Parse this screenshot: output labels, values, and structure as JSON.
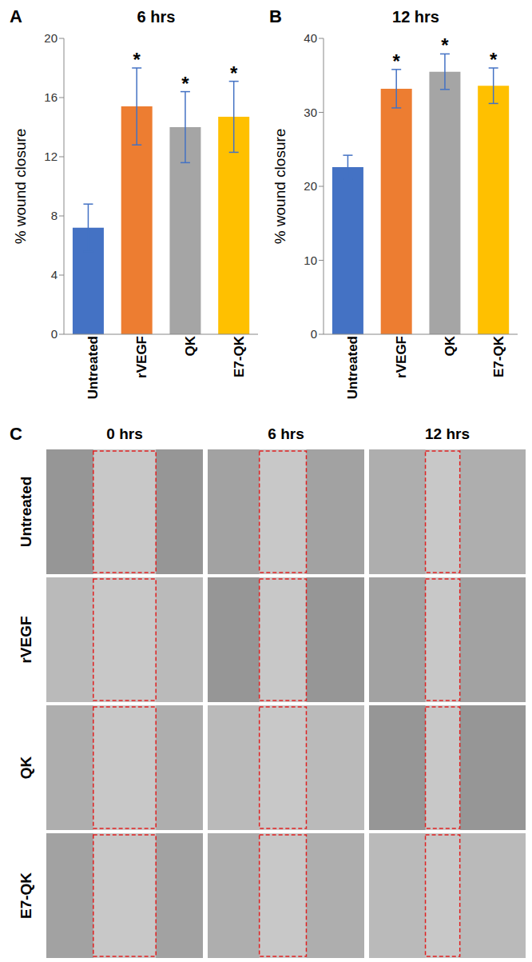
{
  "chart_data": [
    {
      "type": "bar",
      "panel": "A",
      "title": "6 hrs",
      "y_label": "% wound closure",
      "categories": [
        "Untreated",
        "rVEGF",
        "QK",
        "E7-QK"
      ],
      "values": [
        7.2,
        15.4,
        14.0,
        14.7
      ],
      "errors": [
        1.6,
        2.6,
        2.4,
        2.4
      ],
      "annotations": [
        null,
        "*",
        "*",
        "*"
      ],
      "colors": [
        "#4472c4",
        "#ed7d31",
        "#a5a5a5",
        "#ffc000"
      ],
      "ylim": [
        0,
        20
      ],
      "yticks": [
        0,
        4,
        8,
        12,
        16,
        20
      ],
      "grid": false
    },
    {
      "type": "bar",
      "panel": "B",
      "title": "12 hrs",
      "y_label": "% wound closure",
      "categories": [
        "Untreated",
        "rVEGF",
        "QK",
        "E7-QK"
      ],
      "values": [
        22.6,
        33.2,
        35.5,
        33.6
      ],
      "errors": [
        1.6,
        2.6,
        2.4,
        2.4
      ],
      "annotations": [
        null,
        "*",
        "*",
        "*"
      ],
      "colors": [
        "#4472c4",
        "#ed7d31",
        "#a5a5a5",
        "#ffc000"
      ],
      "ylim": [
        0,
        40
      ],
      "yticks": [
        0,
        10,
        20,
        30,
        40
      ],
      "grid": false
    }
  ],
  "panel_c": {
    "label": "C",
    "columns": [
      "0 hrs",
      "6 hrs",
      "12 hrs"
    ],
    "rows": [
      "Untreated",
      "rVEGF",
      "QK",
      "E7-QK"
    ]
  }
}
